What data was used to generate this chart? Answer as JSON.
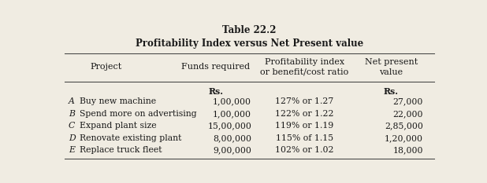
{
  "title1": "Table 22.2",
  "title2": "Profitability Index versus Net Present value",
  "rows": [
    [
      "A",
      "Buy new machine",
      "1,00,000",
      "127% or 1.27",
      "27,000"
    ],
    [
      "B",
      "Spend more on advertising",
      "1,00,000",
      "122% or 1.22",
      "22,000"
    ],
    [
      "C",
      "Expand plant size",
      "15,00,000",
      "119% or 1.19",
      "2,85,000"
    ],
    [
      "D",
      "Renovate existing plant",
      "8,00,000",
      "115% of 1.15",
      "1,20,000"
    ],
    [
      "E",
      "Replace truck fleet",
      "9,00,000",
      "102% or 1.02",
      "18,000"
    ]
  ],
  "bg_color": "#f0ece2",
  "text_color": "#1a1a1a",
  "line_color": "#444444",
  "title_fontsize": 8.5,
  "header_fontsize": 8.0,
  "body_fontsize": 7.8
}
